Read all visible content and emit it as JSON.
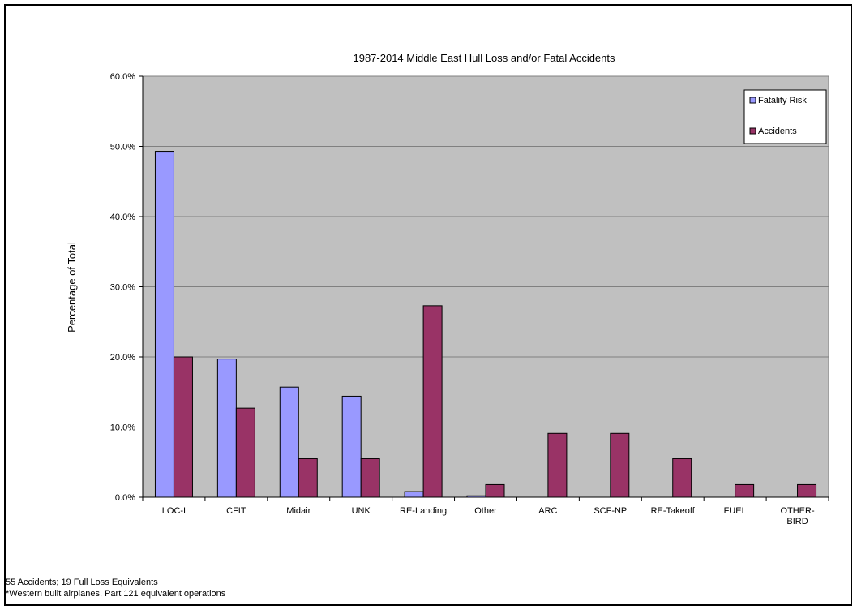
{
  "chart_data": {
    "type": "bar",
    "title": "1987-2014 Middle East Hull Loss and/or Fatal Accidents",
    "xlabel": "",
    "ylabel": "Percentage of Total",
    "ylim": [
      0,
      60
    ],
    "yticks": [
      0,
      10,
      20,
      30,
      40,
      50,
      60
    ],
    "ytick_labels": [
      "0.0%",
      "10.0%",
      "20.0%",
      "30.0%",
      "40.0%",
      "50.0%",
      "60.0%"
    ],
    "grid": true,
    "legend_position": "top-right",
    "categories": [
      "LOC-I",
      "CFIT",
      "Midair",
      "UNK",
      "RE-Landing",
      "Other",
      "ARC",
      "SCF-NP",
      "RE-Takeoff",
      "FUEL",
      "OTHER-\nBIRD"
    ],
    "series": [
      {
        "name": "Fatality Risk",
        "color": "#9999ff",
        "values": [
          49.3,
          19.7,
          15.7,
          14.4,
          0.8,
          0.2,
          0,
          0,
          0,
          0,
          0
        ]
      },
      {
        "name": "Accidents",
        "color": "#993366",
        "values": [
          20.0,
          12.7,
          5.5,
          5.5,
          27.3,
          1.8,
          9.1,
          9.1,
          5.5,
          1.8,
          1.8
        ]
      }
    ],
    "plot_background": "#c0c0c0"
  },
  "footnotes": {
    "line1": "55 Accidents; 19 Full Loss Equivalents",
    "line2": "*Western built airplanes, Part 121 equivalent operations"
  }
}
